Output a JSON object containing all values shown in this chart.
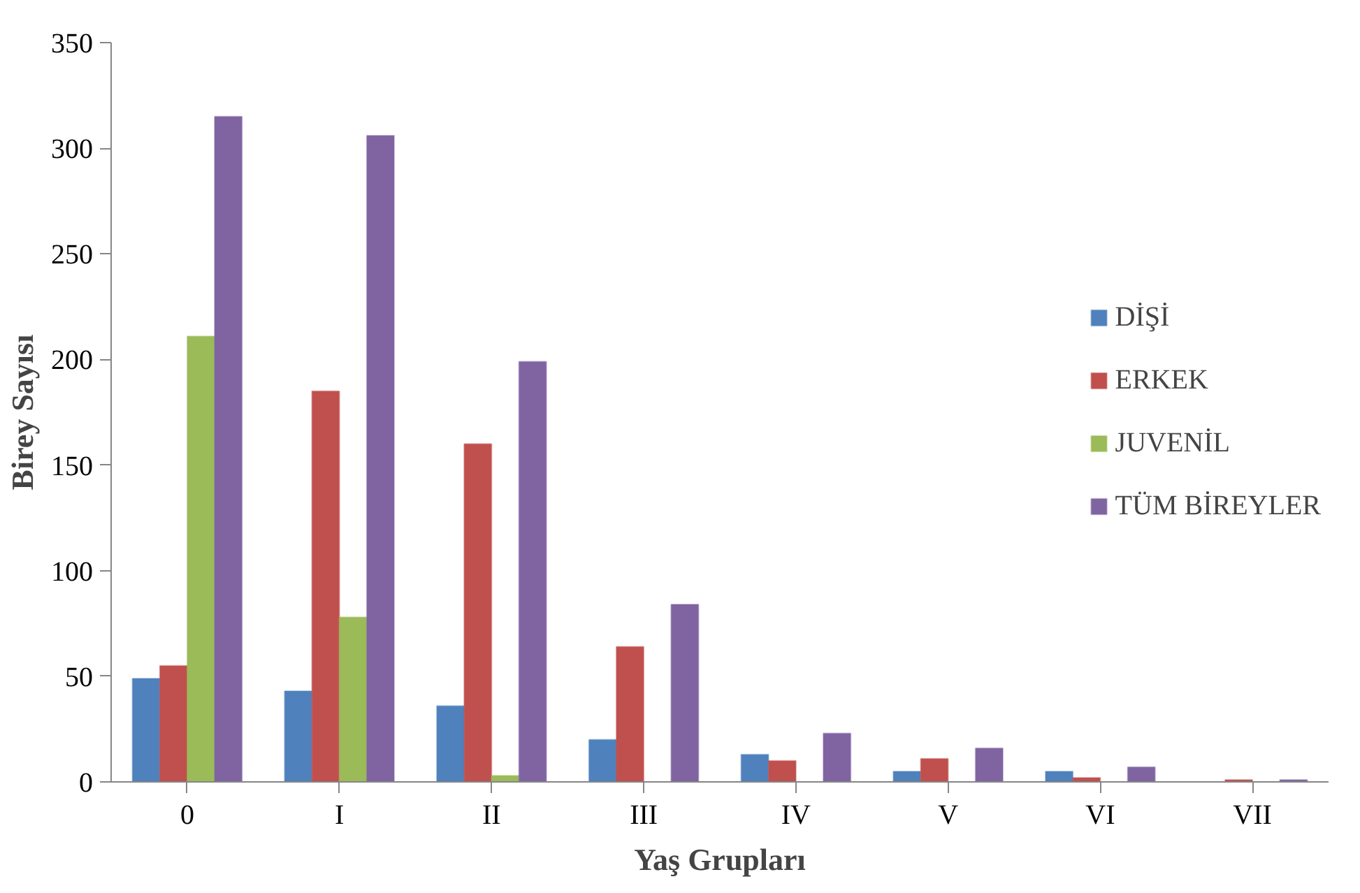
{
  "chart_data": {
    "type": "bar",
    "xlabel": "Yaş Grupları",
    "ylabel": "Birey Sayısı",
    "categories": [
      "0",
      "I",
      "II",
      "III",
      "IV",
      "V",
      "VI",
      "VII"
    ],
    "series": [
      {
        "name": "DİŞİ",
        "color": "#4f81bd",
        "values": [
          49,
          43,
          36,
          20,
          13,
          5,
          5,
          0
        ]
      },
      {
        "name": "ERKEK",
        "color": "#c0504d",
        "values": [
          55,
          185,
          160,
          64,
          10,
          11,
          2,
          1
        ]
      },
      {
        "name": "JUVENİL",
        "color": "#9bbb59",
        "values": [
          211,
          78,
          3,
          0,
          0,
          0,
          0,
          0
        ]
      },
      {
        "name": "TÜM BİREYLER",
        "color": "#8064a2",
        "values": [
          315,
          306,
          199,
          84,
          23,
          16,
          7,
          1
        ]
      }
    ],
    "ylim": [
      0,
      350
    ],
    "yticks": [
      0,
      50,
      100,
      150,
      200,
      250,
      300,
      350
    ],
    "grid": false,
    "legend": "right"
  }
}
